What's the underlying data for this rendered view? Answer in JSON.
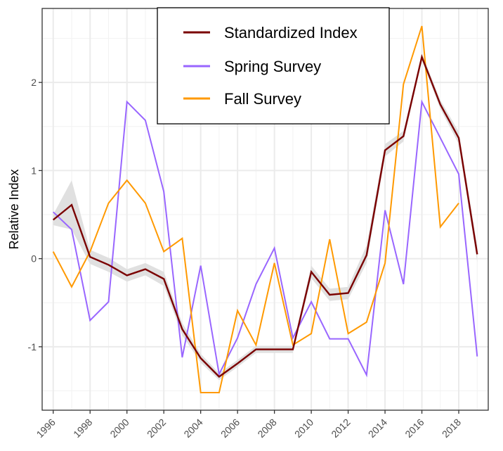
{
  "chart_data": {
    "type": "line",
    "title": "",
    "xlabel": "",
    "ylabel": "Relative Index",
    "xlim": [
      1995.4,
      2019.6
    ],
    "ylim": [
      -1.72,
      2.84
    ],
    "grid": true,
    "legend_position": "top-center",
    "x_ticks": [
      1996,
      1998,
      2000,
      2002,
      2004,
      2006,
      2008,
      2010,
      2012,
      2014,
      2016,
      2018
    ],
    "x_tick_labels": [
      "1996",
      "1998",
      "2000",
      "2002",
      "2004",
      "2006",
      "2008",
      "2010",
      "2012",
      "2014",
      "2016",
      "2018"
    ],
    "y_ticks": [
      -1,
      0,
      1,
      2
    ],
    "y_tick_labels": [
      "-1",
      "0",
      "1",
      "2"
    ],
    "series": [
      {
        "name": "Standardized Index",
        "color": "#7a0000",
        "x": [
          1996,
          1997,
          1998,
          1999,
          2000,
          2001,
          2002,
          2003,
          2004,
          2005,
          2006,
          2007,
          2008,
          2009,
          2010,
          2011,
          2012,
          2013,
          2014,
          2015,
          2016,
          2017,
          2018,
          2019
        ],
        "values": [
          0.44,
          0.61,
          0.02,
          -0.07,
          -0.19,
          -0.12,
          -0.23,
          -0.8,
          -1.13,
          -1.34,
          -1.19,
          -1.03,
          -1.03,
          -1.03,
          -0.15,
          -0.41,
          -0.39,
          0.04,
          1.23,
          1.39,
          2.29,
          1.75,
          1.37,
          0.05
        ],
        "ci_lower": [
          0.38,
          0.33,
          -0.06,
          -0.15,
          -0.26,
          -0.19,
          -0.31,
          -0.87,
          -1.18,
          -1.38,
          -1.23,
          -1.07,
          -1.07,
          -1.07,
          -0.22,
          -0.48,
          -0.46,
          -0.05,
          1.16,
          1.33,
          2.25,
          1.7,
          1.3,
          -0.04
        ],
        "ci_upper": [
          0.5,
          0.89,
          0.1,
          0.01,
          -0.12,
          -0.05,
          -0.15,
          -0.73,
          -1.08,
          -1.3,
          -1.15,
          -0.99,
          -0.99,
          -0.99,
          -0.08,
          -0.34,
          -0.32,
          0.15,
          1.3,
          1.45,
          2.33,
          1.8,
          1.44,
          0.14
        ]
      },
      {
        "name": "Spring Survey",
        "color": "#9966ff",
        "x": [
          1996,
          1997,
          1998,
          1999,
          2000,
          2001,
          2002,
          2003,
          2004,
          2005,
          2006,
          2007,
          2008,
          2009,
          2010,
          2011,
          2012,
          2013,
          2014,
          2015,
          2016,
          2017,
          2018,
          2019
        ],
        "values": [
          0.53,
          0.33,
          -0.7,
          -0.49,
          1.78,
          1.57,
          0.76,
          -1.12,
          -0.08,
          -1.31,
          -0.9,
          -0.29,
          0.12,
          -0.9,
          -0.49,
          -0.91,
          -0.91,
          -1.32,
          0.55,
          -0.29,
          1.78,
          1.37,
          0.96,
          -1.11
        ]
      },
      {
        "name": "Fall Survey",
        "color": "#ff9900",
        "x": [
          1996,
          1997,
          1998,
          1999,
          2000,
          2001,
          2002,
          2003,
          2004,
          2005,
          2006,
          2007,
          2008,
          2009,
          2010,
          2011,
          2012,
          2013,
          2014,
          2015,
          2016,
          2017,
          2018
        ],
        "values": [
          0.08,
          -0.32,
          0.08,
          0.63,
          0.89,
          0.63,
          0.08,
          0.23,
          -1.52,
          -1.52,
          -0.59,
          -0.98,
          -0.05,
          -0.98,
          -0.85,
          0.22,
          -0.85,
          -0.72,
          -0.05,
          1.98,
          2.64,
          0.36,
          0.63
        ]
      }
    ],
    "ci_color": "#e0e0e0"
  }
}
